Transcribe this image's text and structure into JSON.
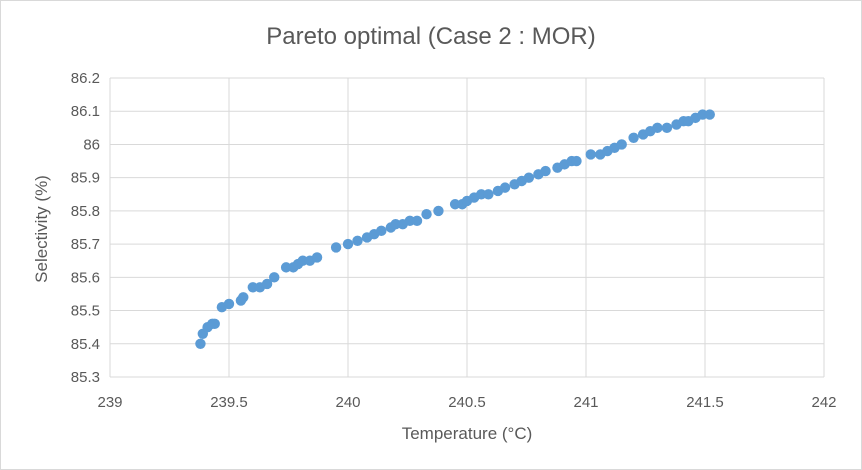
{
  "chart_data": {
    "type": "scatter",
    "title": "Pareto optimal (Case 2 : MOR)",
    "xlabel": "Temperature (°C)",
    "ylabel": "Selectivity (%)",
    "xlim": [
      239,
      242
    ],
    "ylim": [
      85.3,
      86.2
    ],
    "xticks": [
      239,
      239.5,
      240,
      240.5,
      241,
      241.5,
      242
    ],
    "yticks": [
      85.3,
      85.4,
      85.5,
      85.6,
      85.7,
      85.8,
      85.9,
      86,
      86.1,
      86.2
    ],
    "xtick_labels": [
      "239",
      "239.5",
      "240",
      "240.5",
      "241",
      "241.5",
      "242"
    ],
    "ytick_labels": [
      "85.3",
      "85.4",
      "85.5",
      "85.6",
      "85.7",
      "85.8",
      "85.9",
      "86",
      "86.1",
      "86.2"
    ],
    "grid": true,
    "point_color": "#5b9bd5",
    "series": [
      {
        "x": [
          239.38,
          239.39,
          239.41,
          239.43,
          239.44,
          239.47,
          239.5,
          239.55,
          239.56,
          239.6,
          239.63,
          239.66,
          239.69,
          239.74,
          239.77,
          239.79,
          239.81,
          239.84,
          239.87,
          239.95,
          240.0,
          240.04,
          240.08,
          240.11,
          240.14,
          240.18,
          240.2,
          240.23,
          240.26,
          240.29,
          240.33,
          240.38,
          240.45,
          240.48,
          240.5,
          240.53,
          240.56,
          240.59,
          240.63,
          240.66,
          240.7,
          240.73,
          240.76,
          240.8,
          240.83,
          240.88,
          240.91,
          240.94,
          240.96,
          241.02,
          241.06,
          241.09,
          241.12,
          241.15,
          241.2,
          241.24,
          241.27,
          241.3,
          241.34,
          241.38,
          241.41,
          241.43,
          241.46,
          241.49,
          241.52
        ],
        "y": [
          85.4,
          85.43,
          85.45,
          85.46,
          85.46,
          85.51,
          85.52,
          85.53,
          85.54,
          85.57,
          85.57,
          85.58,
          85.6,
          85.63,
          85.63,
          85.64,
          85.65,
          85.65,
          85.66,
          85.69,
          85.7,
          85.71,
          85.72,
          85.73,
          85.74,
          85.75,
          85.76,
          85.76,
          85.77,
          85.77,
          85.79,
          85.8,
          85.82,
          85.82,
          85.83,
          85.84,
          85.85,
          85.85,
          85.86,
          85.87,
          85.88,
          85.89,
          85.9,
          85.91,
          85.92,
          85.93,
          85.94,
          85.95,
          85.95,
          85.97,
          85.97,
          85.98,
          85.99,
          86.0,
          86.02,
          86.03,
          86.04,
          86.05,
          86.05,
          86.06,
          86.07,
          86.07,
          86.08,
          86.09,
          86.09
        ]
      }
    ]
  }
}
